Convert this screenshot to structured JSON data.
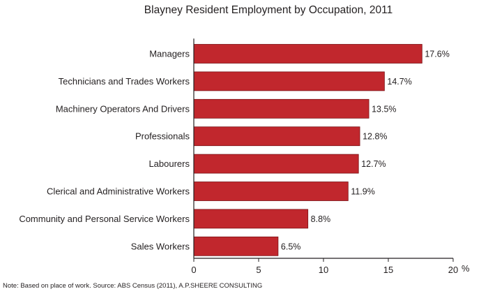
{
  "chart_data": {
    "type": "bar",
    "orientation": "horizontal",
    "title": "Blayney Resident Employment by Occupation, 2011",
    "categories": [
      "Managers",
      "Technicians and Trades Workers",
      "Machinery Operators And Drivers",
      "Professionals",
      "Labourers",
      "Clerical and Administrative Workers",
      "Community and Personal Service Workers",
      "Sales Workers"
    ],
    "values": [
      17.6,
      14.7,
      13.5,
      12.8,
      12.7,
      11.9,
      8.8,
      6.5
    ],
    "value_labels": [
      "17.6%",
      "14.7%",
      "13.5%",
      "12.8%",
      "12.7%",
      "11.9%",
      "8.8%",
      "6.5%"
    ],
    "xlim": [
      0,
      20
    ],
    "xticks": [
      0,
      5,
      10,
      15,
      20
    ],
    "xunit": "%",
    "bar_color": "#c1272d",
    "grid": false
  },
  "note": "Note: Based on place of work. Source: ABS Census (2011), A.P.SHEERE CONSULTING"
}
